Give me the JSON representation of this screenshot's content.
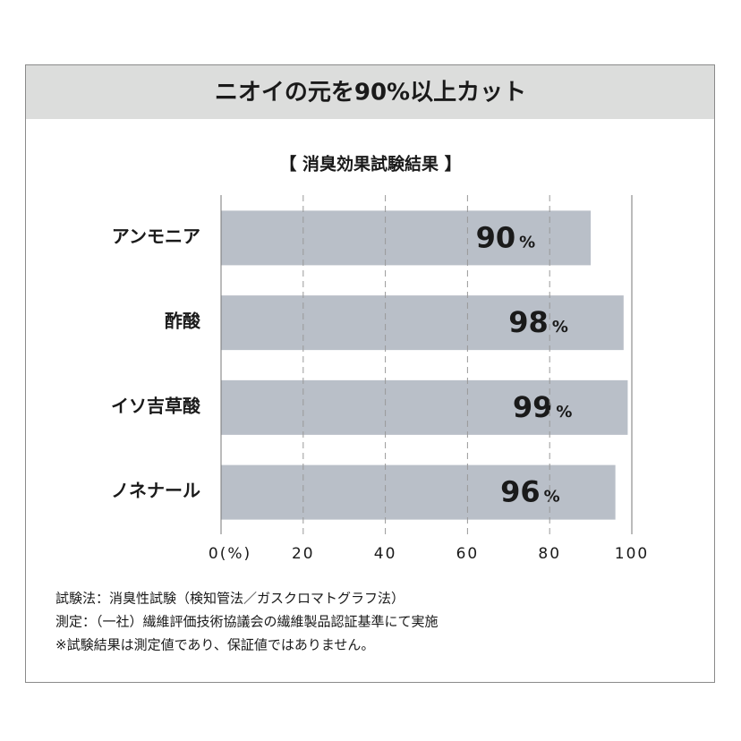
{
  "header": {
    "title": "ニオイの元を90%以上カット"
  },
  "chart_data": {
    "type": "bar",
    "orientation": "horizontal",
    "title": "【 消臭効果試験結果 】",
    "categories": [
      "アンモニア",
      "酢酸",
      "イソ吉草酸",
      "ノネナール"
    ],
    "values": [
      90,
      98,
      99,
      96
    ],
    "unit": "%",
    "color": "#b9bfc8",
    "xlim": [
      0,
      100
    ],
    "xticks": [
      {
        "value": 0,
        "label": "0(%)"
      },
      20,
      40,
      60,
      80,
      100
    ],
    "grid": true
  },
  "notes": [
    "試験法：消臭性試験（検知管法／ガスクロマトグラフ法）",
    "測定：（一社）繊維評価技術協議会の繊維製品認証基準にて実施",
    "※試験結果は測定値であり、保証値ではありません。"
  ]
}
